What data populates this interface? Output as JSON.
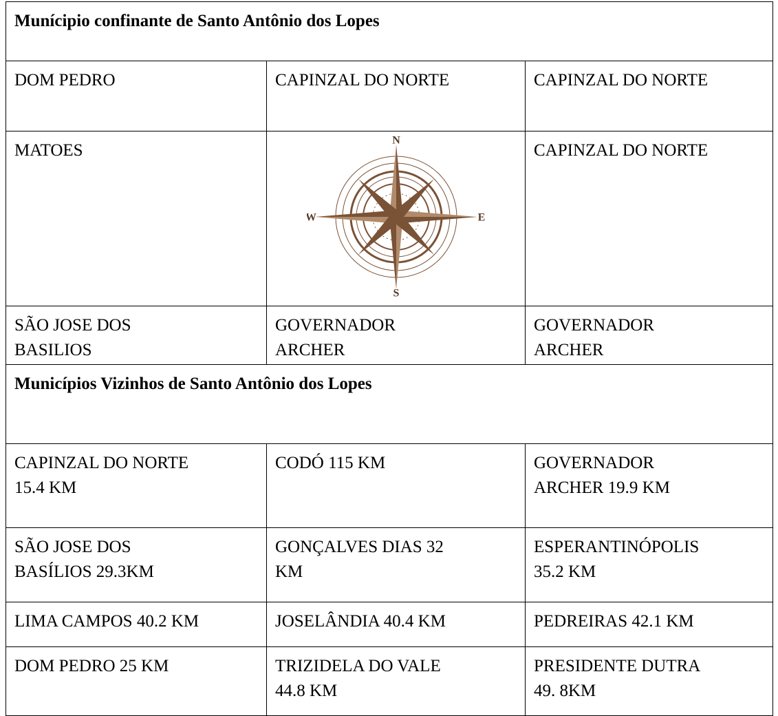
{
  "confinantes": {
    "title": "Munícipio confinante de Santo Antônio dos Lopes",
    "rows": [
      [
        [
          "DOM PEDRO"
        ],
        [
          "CAPINZAL DO NORTE"
        ],
        [
          "CAPINZAL DO NORTE"
        ]
      ],
      [
        [
          "MATOES"
        ],
        [
          "CAPINZAL DO NORTE"
        ]
      ],
      [
        [
          "SÃO JOSE DOS",
          "BASILIOS"
        ],
        [
          "GOVERNADOR",
          "ARCHER"
        ],
        [
          "GOVERNADOR",
          "ARCHER"
        ]
      ]
    ],
    "compass": [
      "N",
      "E",
      "S",
      "W"
    ]
  },
  "vizinhos": {
    "title": "Municípios Vizinhos de Santo Antônio dos Lopes",
    "rows": [
      [
        [
          "CAPINZAL DO NORTE",
          "15.4 KM"
        ],
        [
          "CODÓ 115 KM"
        ],
        [
          "GOVERNADOR",
          "ARCHER 19.9 KM"
        ]
      ],
      [
        [
          "SÃO JOSE DOS",
          "BASÍLIOS 29.3KM"
        ],
        [
          "GONÇALVES DIAS 32",
          "KM"
        ],
        [
          "ESPERANTINÓPOLIS",
          "35.2 KM"
        ]
      ],
      [
        [
          "LIMA CAMPOS 40.2 KM"
        ],
        [
          "JOSELÂNDIA 40.4 KM"
        ],
        [
          "PEDREIRAS 42.1 KM"
        ]
      ],
      [
        [
          "DOM PEDRO 25 KM"
        ],
        [
          "TRIZIDELA DO VALE",
          "44.8 KM"
        ],
        [
          "PRESIDENTE DUTRA",
          "49. 8KM"
        ]
      ]
    ]
  }
}
